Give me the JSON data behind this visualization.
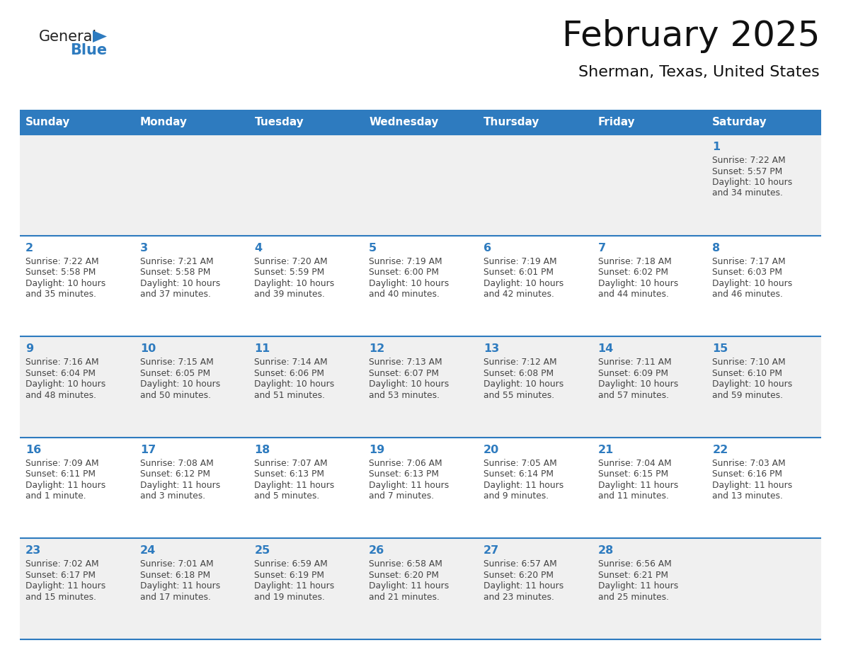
{
  "title": "February 2025",
  "subtitle": "Sherman, Texas, United States",
  "days_of_week": [
    "Sunday",
    "Monday",
    "Tuesday",
    "Wednesday",
    "Thursday",
    "Friday",
    "Saturday"
  ],
  "header_bg": "#2E7BBF",
  "header_text": "#FFFFFF",
  "cell_bg_odd": "#F0F0F0",
  "cell_bg_even": "#FFFFFF",
  "border_color": "#2E7BBF",
  "day_num_color": "#2E7BBF",
  "text_color": "#444444",
  "logo_general_color": "#222222",
  "logo_blue_color": "#2E7BBF",
  "calendar": [
    [
      null,
      null,
      null,
      null,
      null,
      null,
      1
    ],
    [
      2,
      3,
      4,
      5,
      6,
      7,
      8
    ],
    [
      9,
      10,
      11,
      12,
      13,
      14,
      15
    ],
    [
      16,
      17,
      18,
      19,
      20,
      21,
      22
    ],
    [
      23,
      24,
      25,
      26,
      27,
      28,
      null
    ]
  ],
  "sunrise": {
    "1": "7:22 AM",
    "2": "7:22 AM",
    "3": "7:21 AM",
    "4": "7:20 AM",
    "5": "7:19 AM",
    "6": "7:19 AM",
    "7": "7:18 AM",
    "8": "7:17 AM",
    "9": "7:16 AM",
    "10": "7:15 AM",
    "11": "7:14 AM",
    "12": "7:13 AM",
    "13": "7:12 AM",
    "14": "7:11 AM",
    "15": "7:10 AM",
    "16": "7:09 AM",
    "17": "7:08 AM",
    "18": "7:07 AM",
    "19": "7:06 AM",
    "20": "7:05 AM",
    "21": "7:04 AM",
    "22": "7:03 AM",
    "23": "7:02 AM",
    "24": "7:01 AM",
    "25": "6:59 AM",
    "26": "6:58 AM",
    "27": "6:57 AM",
    "28": "6:56 AM"
  },
  "sunset": {
    "1": "5:57 PM",
    "2": "5:58 PM",
    "3": "5:58 PM",
    "4": "5:59 PM",
    "5": "6:00 PM",
    "6": "6:01 PM",
    "7": "6:02 PM",
    "8": "6:03 PM",
    "9": "6:04 PM",
    "10": "6:05 PM",
    "11": "6:06 PM",
    "12": "6:07 PM",
    "13": "6:08 PM",
    "14": "6:09 PM",
    "15": "6:10 PM",
    "16": "6:11 PM",
    "17": "6:12 PM",
    "18": "6:13 PM",
    "19": "6:13 PM",
    "20": "6:14 PM",
    "21": "6:15 PM",
    "22": "6:16 PM",
    "23": "6:17 PM",
    "24": "6:18 PM",
    "25": "6:19 PM",
    "26": "6:20 PM",
    "27": "6:20 PM",
    "28": "6:21 PM"
  },
  "daylight": {
    "1": "10 hours and 34 minutes.",
    "2": "10 hours and 35 minutes.",
    "3": "10 hours and 37 minutes.",
    "4": "10 hours and 39 minutes.",
    "5": "10 hours and 40 minutes.",
    "6": "10 hours and 42 minutes.",
    "7": "10 hours and 44 minutes.",
    "8": "10 hours and 46 minutes.",
    "9": "10 hours and 48 minutes.",
    "10": "10 hours and 50 minutes.",
    "11": "10 hours and 51 minutes.",
    "12": "10 hours and 53 minutes.",
    "13": "10 hours and 55 minutes.",
    "14": "10 hours and 57 minutes.",
    "15": "10 hours and 59 minutes.",
    "16": "11 hours and 1 minute.",
    "17": "11 hours and 3 minutes.",
    "18": "11 hours and 5 minutes.",
    "19": "11 hours and 7 minutes.",
    "20": "11 hours and 9 minutes.",
    "21": "11 hours and 11 minutes.",
    "22": "11 hours and 13 minutes.",
    "23": "11 hours and 15 minutes.",
    "24": "11 hours and 17 minutes.",
    "25": "11 hours and 19 minutes.",
    "26": "11 hours and 21 minutes.",
    "27": "11 hours and 23 minutes.",
    "28": "11 hours and 25 minutes."
  }
}
